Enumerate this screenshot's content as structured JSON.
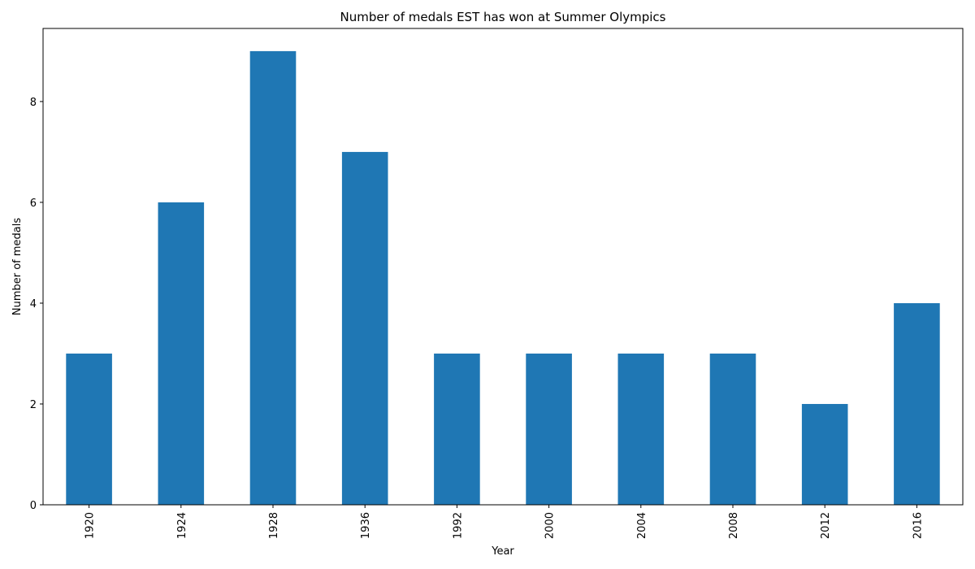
{
  "chart_data": {
    "type": "bar",
    "title": "Number of medals EST has won at Summer Olympics",
    "xlabel": "Year",
    "ylabel": "Number of medals",
    "categories": [
      "1920",
      "1924",
      "1928",
      "1936",
      "1992",
      "2000",
      "2004",
      "2008",
      "2012",
      "2016"
    ],
    "values": [
      3,
      6,
      9,
      7,
      3,
      3,
      3,
      3,
      2,
      4
    ],
    "ylim": [
      0,
      9.45
    ],
    "yticks": [
      0,
      2,
      4,
      6,
      8
    ],
    "grid": false,
    "legend": "none",
    "bar_color": "#1f77b4"
  }
}
